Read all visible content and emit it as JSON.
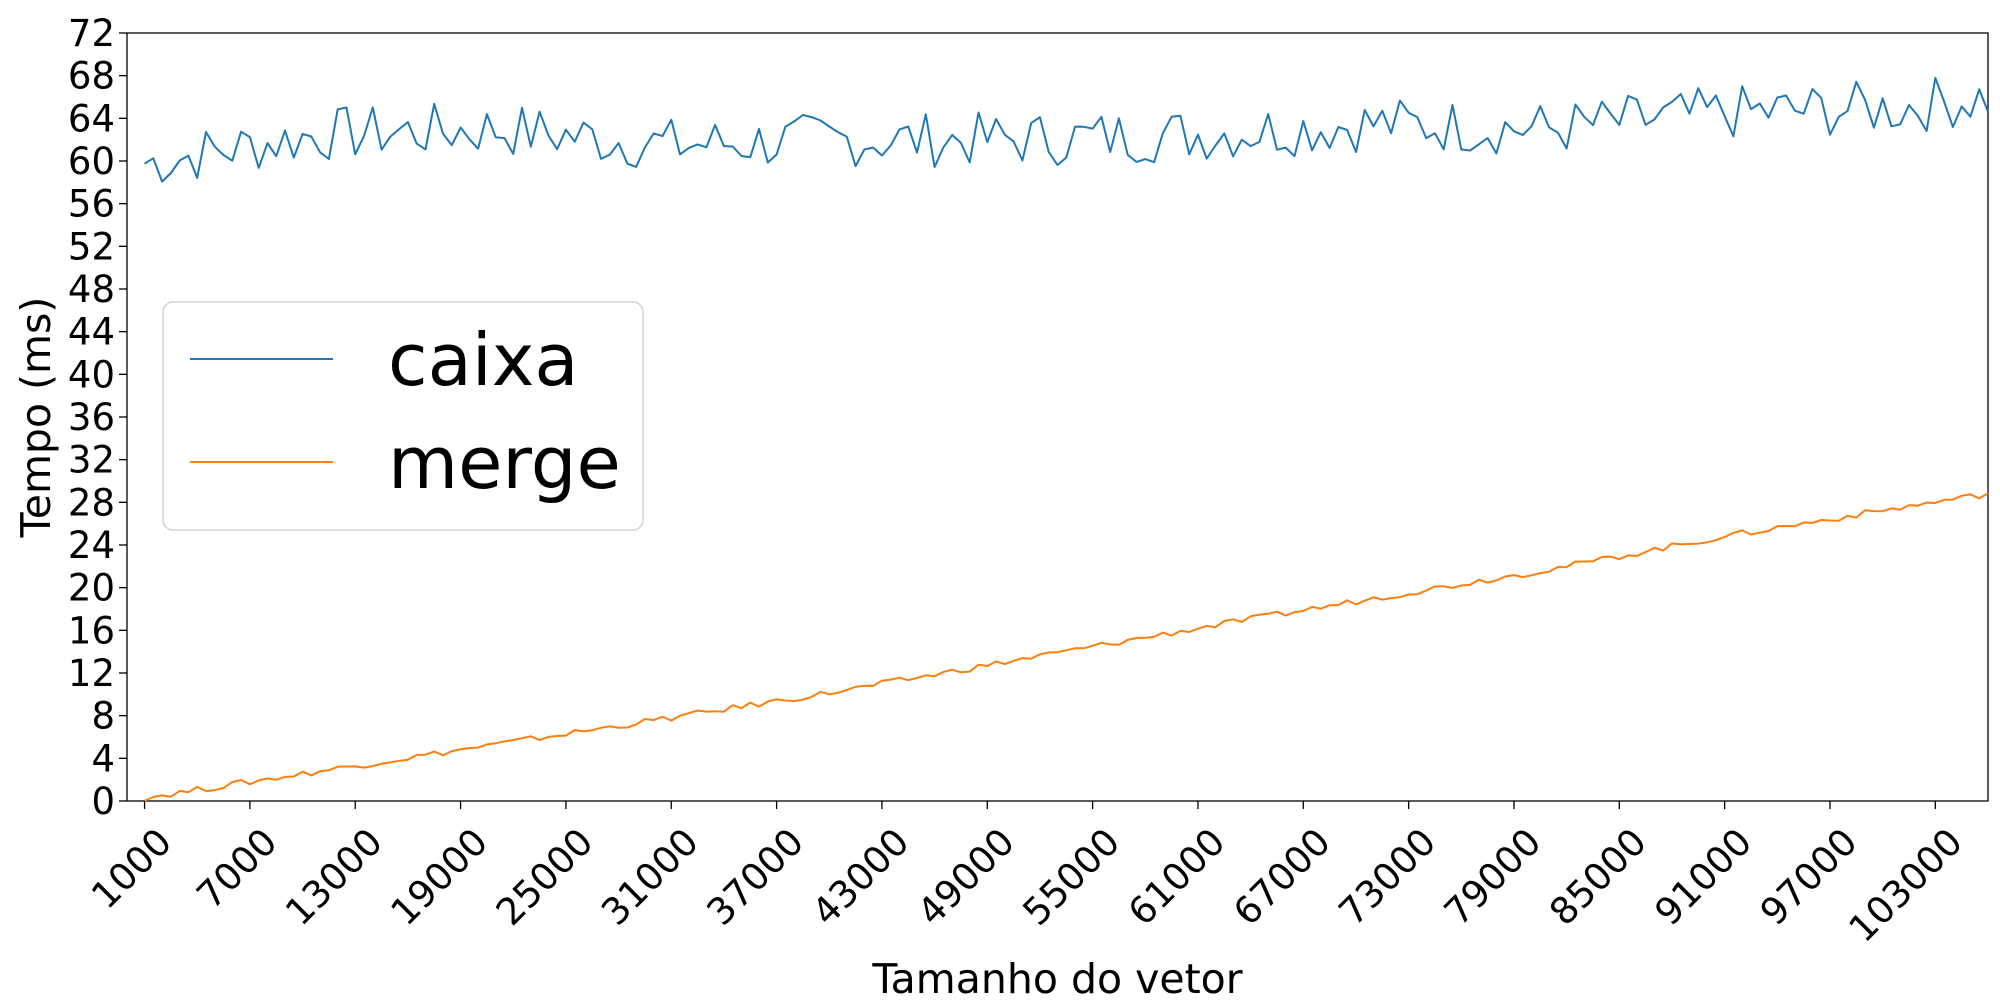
{
  "chart_data": {
    "type": "line",
    "xlabel": "Tamanho do vetor",
    "ylabel": "Tempo (ms)",
    "xlim": [
      0,
      106000
    ],
    "ylim": [
      0,
      72
    ],
    "x_ticks": [
      1000,
      7000,
      13000,
      19000,
      25000,
      31000,
      37000,
      43000,
      49000,
      55000,
      61000,
      67000,
      73000,
      79000,
      85000,
      91000,
      97000,
      103000
    ],
    "y_ticks": [
      0,
      4,
      8,
      12,
      16,
      20,
      24,
      28,
      32,
      36,
      40,
      44,
      48,
      52,
      56,
      60,
      64,
      68,
      72
    ],
    "grid": false,
    "legend_position": "center-left",
    "x": [
      1000,
      11000,
      21000,
      31000,
      41000,
      51000,
      61000,
      71000,
      81000,
      91000,
      101000,
      106000
    ],
    "series": [
      {
        "name": "caixa",
        "color": "#1f77b4",
        "values": [
          59.8,
          62.5,
          63.0,
          61.5,
          62.0,
          62.0,
          62.5,
          63.5,
          63.0,
          64.5,
          65.0,
          66.0
        ]
      },
      {
        "name": "merge",
        "color": "#ff7f0e",
        "values": [
          0.3,
          2.8,
          5.3,
          7.8,
          10.4,
          13.3,
          16.2,
          19.0,
          21.7,
          24.8,
          27.5,
          28.8
        ]
      }
    ]
  }
}
